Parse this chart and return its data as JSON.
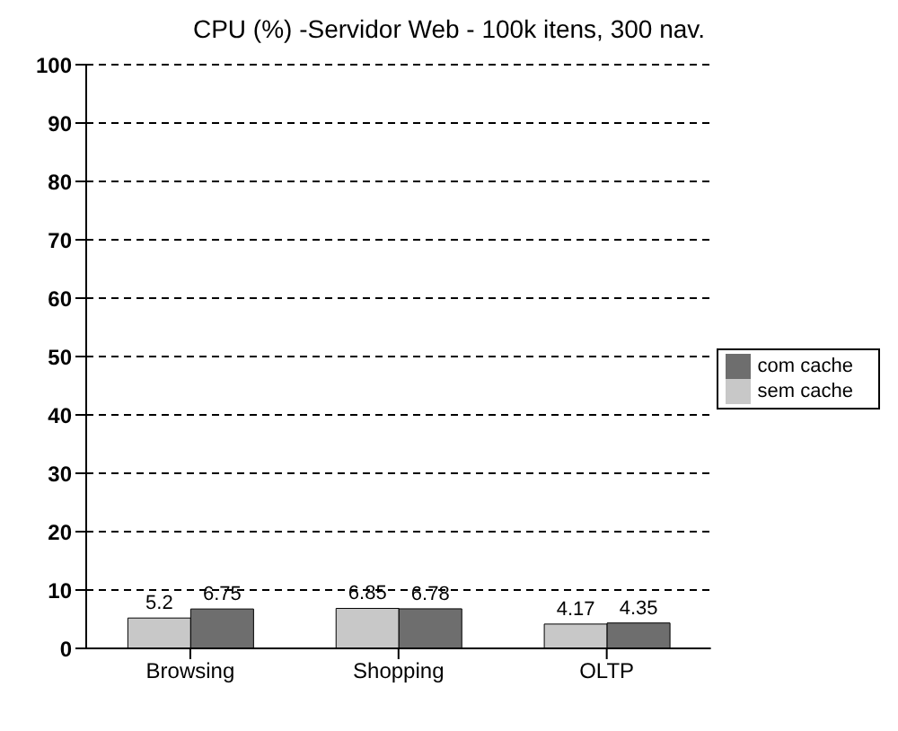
{
  "chart_data": {
    "type": "bar",
    "title": "CPU (%) -Servidor Web - 100k itens, 300 nav.",
    "categories": [
      "Browsing",
      "Shopping",
      "OLTP"
    ],
    "series": [
      {
        "name": "sem cache",
        "color": "#c8c8c8",
        "values": [
          5.2,
          6.85,
          4.17
        ]
      },
      {
        "name": "com cache",
        "color": "#6e6e6e",
        "values": [
          6.75,
          6.78,
          4.35
        ]
      }
    ],
    "ylim": [
      0,
      100
    ],
    "yticks": [
      0,
      10,
      20,
      30,
      40,
      50,
      60,
      70,
      80,
      90,
      100
    ],
    "grid": "y",
    "legend": "right",
    "data_labels": true
  }
}
